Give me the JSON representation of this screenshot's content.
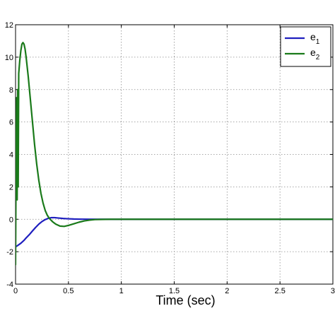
{
  "chart_data": {
    "type": "line",
    "xlabel": "Time (sec)",
    "ylabel": "",
    "xlim": [
      0,
      3
    ],
    "ylim": [
      -4,
      12
    ],
    "xticks": [
      0,
      0.5,
      1,
      1.5,
      2,
      2.5,
      3
    ],
    "xtick_labels": [
      "0",
      "0.5",
      "1",
      "1.5",
      "2",
      "2.5",
      "3"
    ],
    "yticks": [
      -4,
      -2,
      0,
      2,
      4,
      6,
      8,
      10,
      12
    ],
    "ytick_labels": [
      "-4",
      "-2",
      "0",
      "2",
      "4",
      "6",
      "8",
      "10",
      "12"
    ],
    "grid": true,
    "legend_position": "top-right",
    "series": [
      {
        "name": "e",
        "subscript": "1",
        "color": "#1f1fbf",
        "x": [
          0,
          0.02,
          0.05,
          0.08,
          0.1,
          0.13,
          0.16,
          0.19,
          0.22,
          0.25,
          0.28,
          0.31,
          0.34,
          0.37,
          0.4,
          0.45,
          0.5,
          0.55,
          0.6,
          0.7,
          0.8,
          1.0,
          1.5,
          2.0,
          2.5,
          3.0
        ],
        "values": [
          -1.7,
          -1.62,
          -1.48,
          -1.3,
          -1.15,
          -0.95,
          -0.72,
          -0.5,
          -0.3,
          -0.14,
          -0.02,
          0.06,
          0.1,
          0.1,
          0.08,
          0.05,
          0.03,
          0.015,
          0.008,
          0.003,
          0.001,
          0,
          0,
          0,
          0,
          0
        ]
      },
      {
        "name": "e",
        "subscript": "2",
        "color": "#1a7a1a",
        "x": [
          0,
          0.005,
          0.01,
          0.015,
          0.02,
          0.025,
          0.03,
          0.04,
          0.05,
          0.06,
          0.07,
          0.08,
          0.09,
          0.1,
          0.12,
          0.14,
          0.16,
          0.18,
          0.2,
          0.22,
          0.24,
          0.26,
          0.28,
          0.3,
          0.32,
          0.35,
          0.38,
          0.42,
          0.46,
          0.5,
          0.55,
          0.6,
          0.65,
          0.7,
          0.75,
          0.8,
          0.9,
          1.0,
          1.5,
          2.0,
          2.5,
          3.0
        ],
        "values": [
          -2.8,
          3.5,
          7.5,
          1.2,
          8.0,
          2.0,
          9.0,
          9.8,
          10.4,
          10.8,
          10.9,
          10.8,
          10.5,
          10.0,
          8.8,
          7.4,
          6.0,
          4.6,
          3.4,
          2.4,
          1.6,
          1.0,
          0.55,
          0.25,
          0.05,
          -0.15,
          -0.3,
          -0.42,
          -0.44,
          -0.38,
          -0.28,
          -0.18,
          -0.1,
          -0.05,
          -0.02,
          -0.01,
          0,
          0,
          0,
          0,
          0,
          0
        ]
      }
    ]
  }
}
